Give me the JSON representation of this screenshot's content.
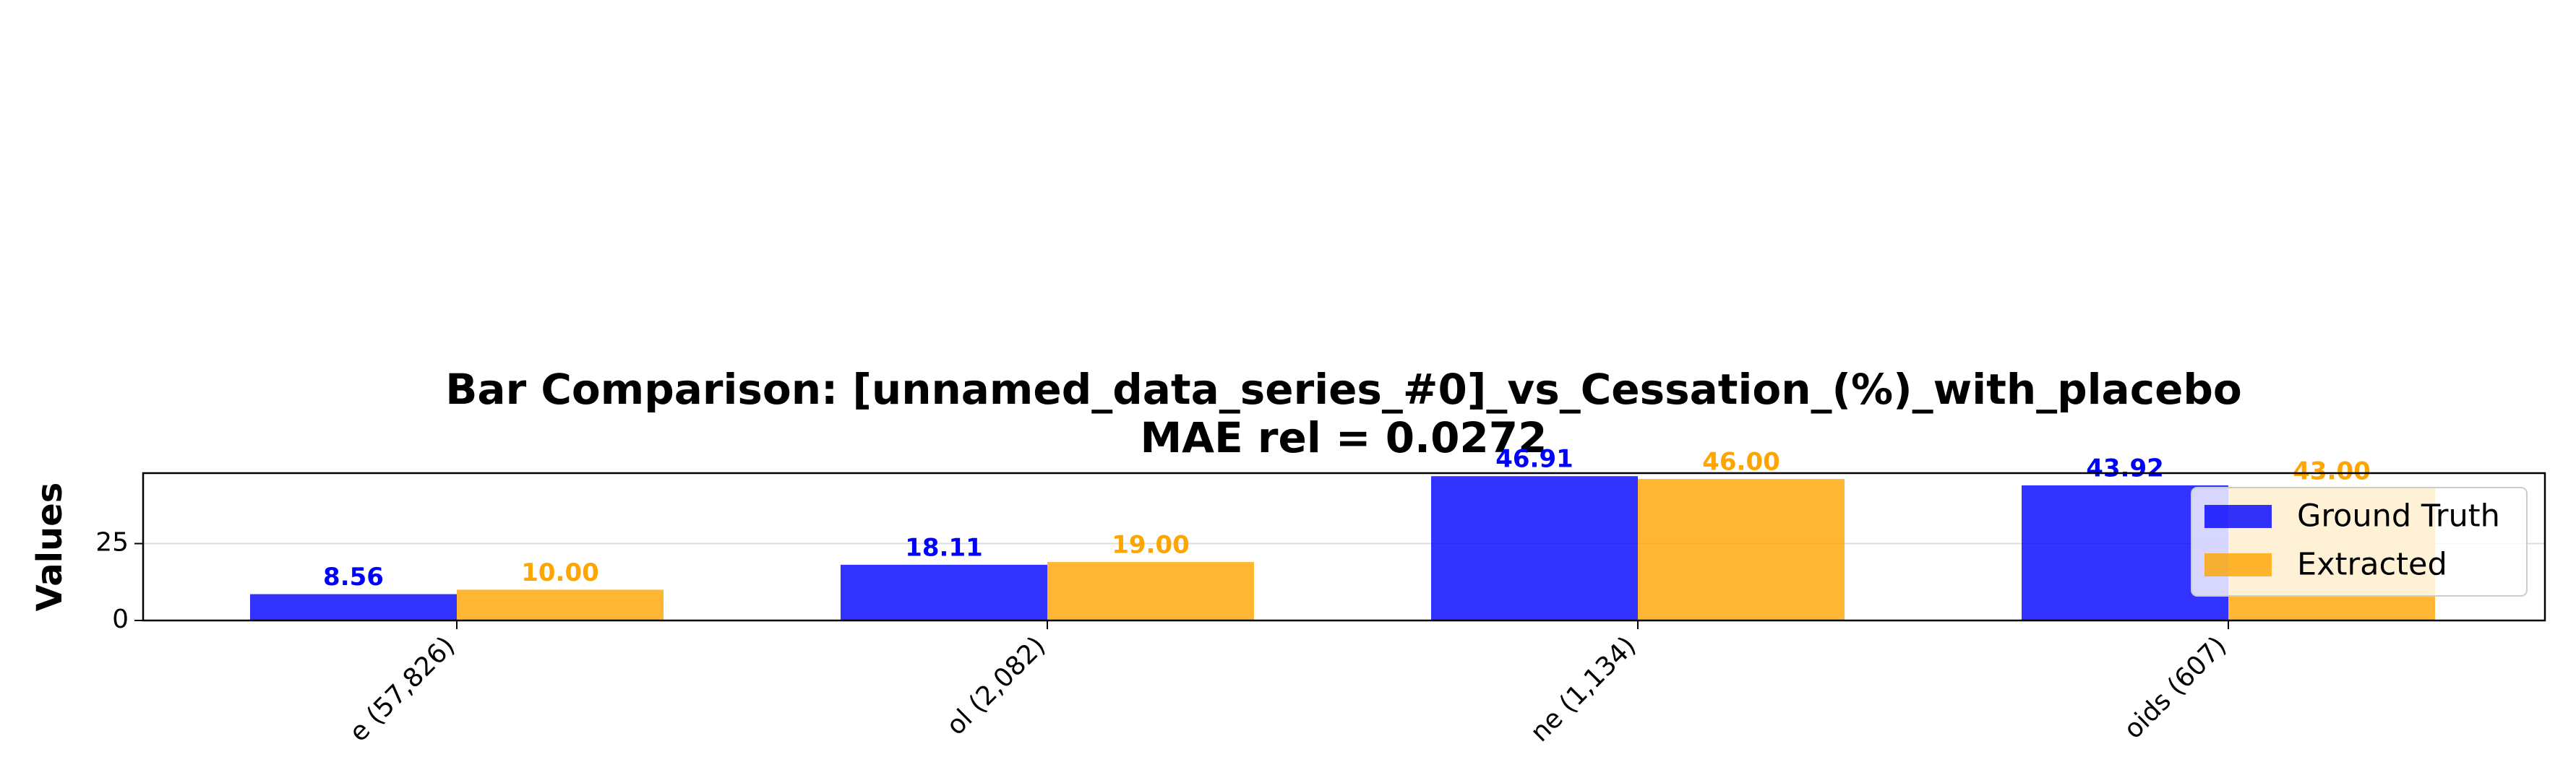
{
  "chart_data": {
    "type": "bar",
    "title": "Bar Comparison: [unnamed_data_series_#0]_vs_Cessation_(%)_with_placebo",
    "subtitle": "MAE rel = 0.0272",
    "y_label": "Values",
    "categories": [
      "e (57,826)",
      "ol (2,082)",
      "ne (1,134)",
      "oids (607)"
    ],
    "series": [
      {
        "name": "Ground Truth",
        "color": "#0000ff",
        "values": [
          8.56,
          18.11,
          46.91,
          43.92
        ],
        "value_labels": [
          "8.56",
          "18.11",
          "46.91",
          "43.92"
        ]
      },
      {
        "name": "Extracted",
        "color": "#ffa500",
        "values": [
          10,
          19,
          46,
          43
        ],
        "value_labels": [
          "10.00",
          "19.00",
          "46.00",
          "43.00"
        ]
      }
    ],
    "ylim": [
      0,
      47.9
    ],
    "yticks": [
      0,
      25
    ],
    "grid": true,
    "legend": "upper right"
  }
}
